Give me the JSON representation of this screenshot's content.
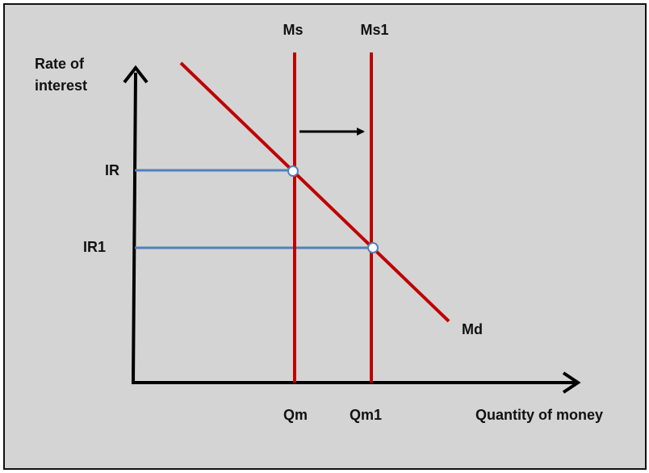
{
  "diagram": {
    "y_axis_label": [
      "Rate of",
      "interest"
    ],
    "x_axis_label": "Quantity of money",
    "supply_curve_labels": [
      "Ms",
      "Ms1"
    ],
    "demand_curve_label": "Md",
    "interest_rate_labels": [
      "IR",
      "IR1"
    ],
    "quantity_labels": [
      "Qm",
      "Qm1"
    ]
  },
  "colors": {
    "background": "#d4d4d4",
    "supply_and_demand": "#c00000",
    "guide_lines": "#4f81bd",
    "axes": "#000000"
  }
}
